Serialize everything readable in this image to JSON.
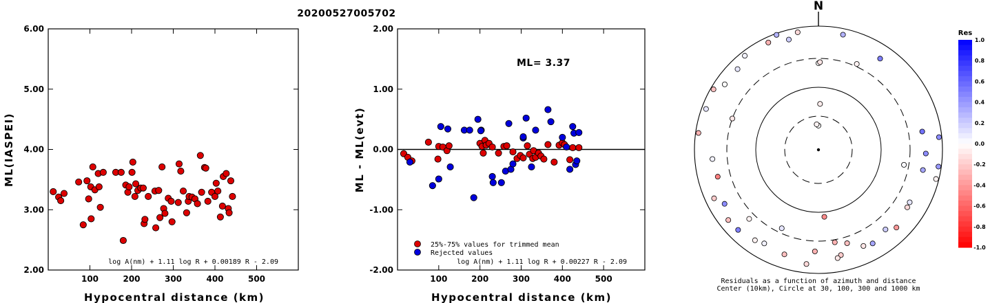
{
  "title": "20200527005702",
  "chart_data": [
    {
      "type": "scatter",
      "xlabel": "Hypocentral distance (km)",
      "ylabel": "ML(IASPEI)",
      "xlim": [
        0,
        600
      ],
      "ylim": [
        2.0,
        6.0
      ],
      "xticks": [
        100,
        200,
        300,
        400,
        500
      ],
      "yticks": [
        "2.00",
        "3.00",
        "4.00",
        "5.00",
        "6.00"
      ],
      "marker_color": "#dd0000",
      "formula": "log A(nm) + 1.11 log R + 0.00189 R - 2.09",
      "points": [
        [
          12,
          3.3
        ],
        [
          25,
          3.21
        ],
        [
          30,
          3.15
        ],
        [
          38,
          3.27
        ],
        [
          73,
          3.46
        ],
        [
          84,
          2.75
        ],
        [
          93,
          3.48
        ],
        [
          97,
          3.18
        ],
        [
          102,
          3.38
        ],
        [
          103,
          2.85
        ],
        [
          107,
          3.71
        ],
        [
          112,
          3.33
        ],
        [
          120,
          3.6
        ],
        [
          122,
          3.38
        ],
        [
          125,
          3.04
        ],
        [
          132,
          3.62
        ],
        [
          162,
          3.62
        ],
        [
          175,
          3.62
        ],
        [
          180,
          2.49
        ],
        [
          186,
          3.41
        ],
        [
          191,
          3.29
        ],
        [
          194,
          3.38
        ],
        [
          201,
          3.62
        ],
        [
          203,
          3.79
        ],
        [
          208,
          3.22
        ],
        [
          210,
          3.43
        ],
        [
          215,
          3.32
        ],
        [
          222,
          3.36
        ],
        [
          228,
          3.36
        ],
        [
          230,
          2.77
        ],
        [
          232,
          2.84
        ],
        [
          240,
          3.22
        ],
        [
          256,
          3.31
        ],
        [
          258,
          2.7
        ],
        [
          265,
          3.32
        ],
        [
          268,
          2.87
        ],
        [
          273,
          3.71
        ],
        [
          277,
          3.02
        ],
        [
          280,
          2.94
        ],
        [
          288,
          3.19
        ],
        [
          295,
          3.14
        ],
        [
          297,
          2.8
        ],
        [
          312,
          3.12
        ],
        [
          314,
          3.76
        ],
        [
          318,
          3.64
        ],
        [
          324,
          3.31
        ],
        [
          332,
          2.95
        ],
        [
          336,
          3.14
        ],
        [
          338,
          3.22
        ],
        [
          345,
          3.21
        ],
        [
          352,
          3.18
        ],
        [
          358,
          3.1
        ],
        [
          365,
          3.9
        ],
        [
          368,
          3.29
        ],
        [
          375,
          3.7
        ],
        [
          378,
          3.69
        ],
        [
          383,
          3.14
        ],
        [
          392,
          3.29
        ],
        [
          400,
          3.22
        ],
        [
          407,
          3.31
        ],
        [
          413,
          2.88
        ],
        [
          418,
          3.06
        ],
        [
          420,
          3.55
        ],
        [
          427,
          3.6
        ],
        [
          432,
          3.02
        ],
        [
          434,
          2.95
        ],
        [
          438,
          3.48
        ],
        [
          442,
          3.22
        ],
        [
          403,
          3.44
        ]
      ]
    },
    {
      "type": "scatter",
      "xlabel": "Hypocentral distance (km)",
      "ylabel": "ML - ML(evt)",
      "xlim": [
        0,
        600
      ],
      "ylim": [
        -2.0,
        2.0
      ],
      "xticks": [
        100,
        200,
        300,
        400,
        500
      ],
      "yticks": [
        "-2.00",
        "-1.00",
        "0.00",
        "1.00",
        "2.00"
      ],
      "annotation": "ML= 3.37",
      "formula": "log A(nm) + 1.11 log R + 0.00227 R - 2.09",
      "legend": [
        "25%-75% values for trimmed mean",
        "Rejected values"
      ],
      "series": [
        {
          "name": "25%-75% values for trimmed mean",
          "color": "#dd0000",
          "points": [
            [
              15,
              -0.07
            ],
            [
              25,
              -0.13
            ],
            [
              35,
              -0.19
            ],
            [
              75,
              0.12
            ],
            [
              98,
              -0.16
            ],
            [
              100,
              0.05
            ],
            [
              110,
              0.04
            ],
            [
              120,
              -0.02
            ],
            [
              125,
              0.06
            ],
            [
              200,
              0.1
            ],
            [
              205,
              0.05
            ],
            [
              208,
              -0.06
            ],
            [
              212,
              0.15
            ],
            [
              215,
              0.07
            ],
            [
              222,
              0.1
            ],
            [
              230,
              0.04
            ],
            [
              245,
              -0.06
            ],
            [
              258,
              0.05
            ],
            [
              265,
              0.06
            ],
            [
              280,
              -0.04
            ],
            [
              290,
              -0.15
            ],
            [
              298,
              -0.1
            ],
            [
              305,
              -0.14
            ],
            [
              315,
              0.06
            ],
            [
              320,
              -0.08
            ],
            [
              328,
              -0.15
            ],
            [
              330,
              -0.02
            ],
            [
              335,
              -0.13
            ],
            [
              342,
              -0.06
            ],
            [
              348,
              -0.11
            ],
            [
              355,
              -0.16
            ],
            [
              365,
              0.08
            ],
            [
              380,
              -0.21
            ],
            [
              392,
              0.07
            ],
            [
              400,
              0.11
            ],
            [
              405,
              0.08
            ],
            [
              418,
              -0.17
            ],
            [
              425,
              0.03
            ],
            [
              440,
              0.03
            ]
          ]
        },
        {
          "name": "Rejected values",
          "color": "#0000dd",
          "points": [
            [
              30,
              -0.21
            ],
            [
              85,
              -0.6
            ],
            [
              100,
              -0.49
            ],
            [
              105,
              0.38
            ],
            [
              122,
              0.34
            ],
            [
              128,
              -0.29
            ],
            [
              162,
              0.32
            ],
            [
              175,
              0.32
            ],
            [
              185,
              -0.8
            ],
            [
              195,
              0.5
            ],
            [
              203,
              0.32
            ],
            [
              230,
              -0.45
            ],
            [
              232,
              -0.55
            ],
            [
              252,
              -0.55
            ],
            [
              262,
              -0.36
            ],
            [
              270,
              0.43
            ],
            [
              275,
              -0.33
            ],
            [
              280,
              -0.24
            ],
            [
              305,
              0.19
            ],
            [
              312,
              0.52
            ],
            [
              325,
              -0.29
            ],
            [
              335,
              0.32
            ],
            [
              365,
              0.66
            ],
            [
              372,
              0.46
            ],
            [
              400,
              0.2
            ],
            [
              410,
              0.04
            ],
            [
              418,
              -0.33
            ],
            [
              425,
              0.38
            ],
            [
              428,
              0.27
            ],
            [
              432,
              -0.25
            ],
            [
              435,
              -0.19
            ],
            [
              440,
              0.28
            ],
            [
              202,
              0.31
            ],
            [
              305,
              0.21
            ]
          ]
        }
      ]
    },
    {
      "type": "scatter",
      "north_label": "N",
      "caption_lines": [
        "Residuals as a function of azimuth and distance",
        "Center (10km), Circle at 30, 100, 300 and 1000 km"
      ],
      "rings_km": [
        30,
        100,
        300,
        1000
      ],
      "colorbar": {
        "title": "Res",
        "ticks": [
          "1.0",
          "0.8",
          "0.6",
          "0.4",
          "0.2",
          "0.0",
          "-0.2",
          "-0.4",
          "-0.6",
          "-0.8",
          "-1.0"
        ]
      },
      "stations": [
        {
          "az": 0,
          "dist": 22,
          "res": 0.0
        },
        {
          "az": 356,
          "dist": 23,
          "res": -0.05
        },
        {
          "az": 100,
          "dist": 250,
          "res": 0.02
        },
        {
          "az": 2,
          "dist": 50,
          "res": -0.07
        },
        {
          "az": 0,
          "dist": 250,
          "res": 0.0
        },
        {
          "az": 1,
          "dist": 260,
          "res": -0.1
        },
        {
          "az": 12,
          "dist": 800,
          "res": 0.3
        },
        {
          "az": 24,
          "dist": 330,
          "res": -0.05
        },
        {
          "az": 34,
          "dist": 600,
          "res": 0.5
        },
        {
          "az": 80,
          "dist": 500,
          "res": 0.55
        },
        {
          "az": 84,
          "dist": 900,
          "res": 0.45
        },
        {
          "az": 92,
          "dist": 540,
          "res": 0.45
        },
        {
          "az": 101,
          "dist": 520,
          "res": 0.35
        },
        {
          "az": 104,
          "dist": 900,
          "res": -0.05
        },
        {
          "az": 98,
          "dist": 900,
          "res": 0.4
        },
        {
          "az": 120,
          "dist": 500,
          "res": 0.1
        },
        {
          "az": 123,
          "dist": 510,
          "res": -0.15
        },
        {
          "az": 140,
          "dist": 480,
          "res": 0.2
        },
        {
          "az": 150,
          "dist": 560,
          "res": 0.35
        },
        {
          "az": 155,
          "dist": 520,
          "res": -0.1
        },
        {
          "az": 163,
          "dist": 380,
          "res": -0.25
        },
        {
          "az": 168,
          "dist": 550,
          "res": -0.2
        },
        {
          "az": 170,
          "dist": 600,
          "res": -0.1
        },
        {
          "az": 175,
          "dist": 120,
          "res": -0.45
        },
        {
          "az": 182,
          "dist": 440,
          "res": -0.3
        },
        {
          "az": 186,
          "dist": 720,
          "res": -0.15
        },
        {
          "az": 198,
          "dist": 600,
          "res": -0.25
        },
        {
          "az": 210,
          "dist": 560,
          "res": 0.05
        },
        {
          "az": 215,
          "dist": 610,
          "res": -0.05
        },
        {
          "az": 225,
          "dist": 680,
          "res": 0.5
        },
        {
          "az": 232,
          "dist": 700,
          "res": -0.25
        },
        {
          "az": 245,
          "dist": 720,
          "res": -0.2
        },
        {
          "az": 240,
          "dist": 560,
          "res": 0.45
        },
        {
          "az": 255,
          "dist": 480,
          "res": -0.5
        },
        {
          "az": 265,
          "dist": 520,
          "res": 0.05
        },
        {
          "az": 278,
          "dist": 900,
          "res": -0.3
        },
        {
          "az": 290,
          "dist": 300,
          "res": -0.1
        },
        {
          "az": 300,
          "dist": 900,
          "res": -0.25
        },
        {
          "az": 315,
          "dist": 700,
          "res": 0.1
        },
        {
          "az": 322,
          "dist": 850,
          "res": 0.05
        },
        {
          "az": 335,
          "dist": 820,
          "res": -0.3
        },
        {
          "az": 340,
          "dist": 950,
          "res": 0.3
        },
        {
          "az": 350,
          "dist": 850,
          "res": -0.15
        },
        {
          "az": 345,
          "dist": 700,
          "res": 0.2
        },
        {
          "az": 305,
          "dist": 700,
          "res": 0.0
        },
        {
          "az": 290,
          "dist": 850,
          "res": 0.1
        },
        {
          "az": 205,
          "dist": 250,
          "res": 0.1
        },
        {
          "az": 170,
          "dist": 330,
          "res": -0.3
        },
        {
          "az": 135,
          "dist": 600,
          "res": -0.4
        },
        {
          "az": 225,
          "dist": 380,
          "res": -0.05
        }
      ]
    }
  ]
}
